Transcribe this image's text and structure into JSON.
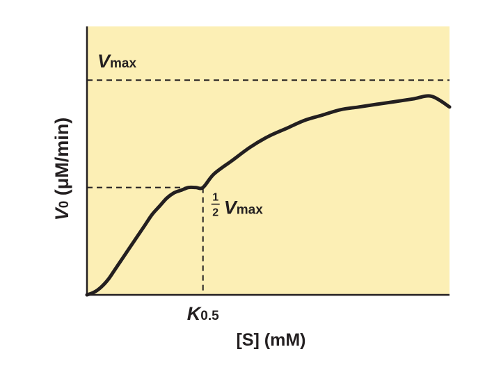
{
  "chart_data": {
    "type": "line",
    "title": "",
    "xlabel": "[S] (mM)",
    "ylabel_sym": "V",
    "ylabel_sub": "0",
    "ylabel_unit": " (μM/min)",
    "xlim": [
      0,
      1
    ],
    "ylim": [
      0,
      1
    ],
    "grid": false,
    "vmax": 0.8,
    "half_vmax": 0.4,
    "k05": 0.32,
    "vmax_label": {
      "sym": "V",
      "sub": "max"
    },
    "half_vmax_label": {
      "num": "1",
      "den": "2",
      "sym": "V",
      "sub": "max"
    },
    "k05_label": {
      "sym": "K",
      "sub": "0.5"
    },
    "series": [
      {
        "x": [
          0,
          0.02,
          0.04,
          0.06,
          0.08,
          0.1,
          0.12,
          0.14,
          0.16,
          0.18,
          0.2,
          0.22,
          0.24,
          0.26,
          0.28,
          0.3,
          0.32,
          0.35,
          0.4,
          0.45,
          0.5,
          0.55,
          0.6,
          0.65,
          0.7,
          0.75,
          0.8,
          0.85,
          0.9,
          0.95,
          1.0
        ],
        "y": [
          0,
          0.01,
          0.03,
          0.06,
          0.1,
          0.14,
          0.18,
          0.22,
          0.26,
          0.3,
          0.33,
          0.36,
          0.38,
          0.39,
          0.4,
          0.4,
          0.4,
          0.45,
          0.5,
          0.55,
          0.59,
          0.62,
          0.65,
          0.67,
          0.69,
          0.7,
          0.71,
          0.72,
          0.73,
          0.74,
          0.7
        ]
      }
    ],
    "colors": {
      "plot_bg": "#fcefb5",
      "curve": "#231f20",
      "axis": "#231f20"
    }
  }
}
